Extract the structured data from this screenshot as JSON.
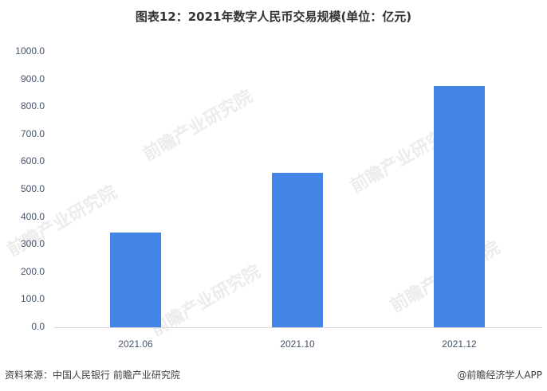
{
  "title": "图表12：2021年数字人民币交易规模(单位：亿元)",
  "source": "资料来源：中国人民银行 前瞻产业研究院",
  "credit": "@前瞻经济学人APP",
  "watermark": "前瞻产业研究院",
  "y_ticks": [
    "1000.0",
    "900.0",
    "800.0",
    "700.0",
    "600.0",
    "500.0",
    "400.0",
    "300.0",
    "200.0",
    "100.0",
    "0.0"
  ],
  "colors": {
    "bar": "#4285e4",
    "axis": "#d9d9d9",
    "tick_text": "#44546a"
  },
  "chart_data": {
    "type": "bar",
    "title": "图表12：2021年数字人民币交易规模(单位：亿元)",
    "categories": [
      "2021.06",
      "2021.10",
      "2021.12"
    ],
    "values": [
      345,
      560,
      876
    ],
    "xlabel": "",
    "ylabel": "亿元",
    "ylim": [
      0,
      1000
    ],
    "y_tick_step": 100,
    "grid": false,
    "legend": "none"
  }
}
